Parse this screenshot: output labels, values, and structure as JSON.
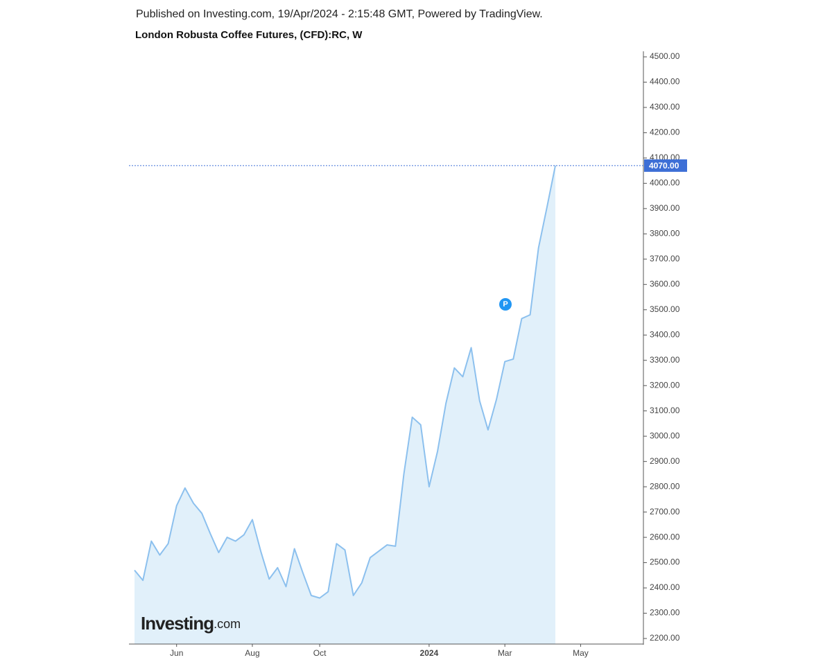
{
  "header": {
    "published": "Published on Investing.com, 19/Apr/2024 - 2:15:48 GMT, Powered by TradingView."
  },
  "chart_data": {
    "type": "area",
    "title": "London Robusta Coffee Futures, (CFD):RC, W",
    "categories": [
      null,
      null,
      null,
      null,
      null,
      "Jun",
      null,
      null,
      null,
      null,
      null,
      null,
      null,
      null,
      "Aug",
      null,
      null,
      null,
      null,
      null,
      null,
      null,
      "Oct",
      null,
      null,
      null,
      null,
      null,
      null,
      null,
      null,
      null,
      null,
      null,
      null,
      "2024",
      null,
      null,
      null,
      null,
      null,
      null,
      null,
      null,
      "Mar",
      null,
      null,
      null,
      null,
      null,
      null,
      null,
      null,
      "May"
    ],
    "values": [
      2470,
      2430,
      2585,
      2530,
      2575,
      2725,
      2795,
      2735,
      2695,
      2615,
      2540,
      2600,
      2585,
      2610,
      2670,
      2545,
      2435,
      2480,
      2405,
      2555,
      2460,
      2370,
      2360,
      2385,
      2575,
      2550,
      2370,
      2420,
      2520,
      2545,
      2570,
      2565,
      2850,
      3075,
      3045,
      2800,
      2940,
      3130,
      3270,
      3235,
      3350,
      3140,
      3025,
      3145,
      3295,
      3305,
      3465,
      3480,
      3745,
      3905,
      4070,
      null,
      null,
      null
    ],
    "value_labels": [
      null,
      null,
      null,
      null,
      null,
      null,
      null,
      null,
      null,
      null,
      null,
      null,
      null,
      null,
      null,
      null,
      null,
      null,
      null,
      null,
      null,
      null,
      null,
      null,
      null,
      null,
      null,
      null,
      null,
      null,
      null,
      null,
      null,
      null,
      null,
      null,
      null,
      null,
      null,
      null,
      null,
      null,
      null,
      null,
      null,
      null,
      null,
      null,
      null,
      null,
      "4070.00",
      null,
      null,
      null
    ],
    "line_color": "#8cc0ee",
    "fill_color": "#e1f0fa",
    "last_color": "#3d6fd6",
    "ylim": [
      2200,
      4500
    ],
    "yticks": [
      {
        "value": 2200,
        "label": "2200.00"
      },
      {
        "value": 2300,
        "label": "2300.00"
      },
      {
        "value": 2400,
        "label": "2400.00"
      },
      {
        "value": 2500,
        "label": "2500.00"
      },
      {
        "value": 2600,
        "label": "2600.00"
      },
      {
        "value": 2700,
        "label": "2700.00"
      },
      {
        "value": 2800,
        "label": "2800.00"
      },
      {
        "value": 2900,
        "label": "2900.00"
      },
      {
        "value": 3000,
        "label": "3000.00"
      },
      {
        "value": 3100,
        "label": "3100.00"
      },
      {
        "value": 3200,
        "label": "3200.00"
      },
      {
        "value": 3300,
        "label": "3300.00"
      },
      {
        "value": 3400,
        "label": "3400.00"
      },
      {
        "value": 3500,
        "label": "3500.00"
      },
      {
        "value": 3600,
        "label": "3600.00"
      },
      {
        "value": 3700,
        "label": "3700.00"
      },
      {
        "value": 3800,
        "label": "3800.00"
      },
      {
        "value": 3900,
        "label": "3900.00"
      },
      {
        "value": 4000,
        "label": "4000.00"
      },
      {
        "value": 4100,
        "label": "4100.00"
      },
      {
        "value": 4200,
        "label": "4200.00"
      },
      {
        "value": 4300,
        "label": "4300.00"
      },
      {
        "value": 4400,
        "label": "4400.00"
      },
      {
        "value": 4500,
        "label": "4500.00"
      }
    ],
    "grid": false,
    "marker_label": "P",
    "logo": {
      "brand": "Investing",
      "suffix": ".com"
    }
  }
}
